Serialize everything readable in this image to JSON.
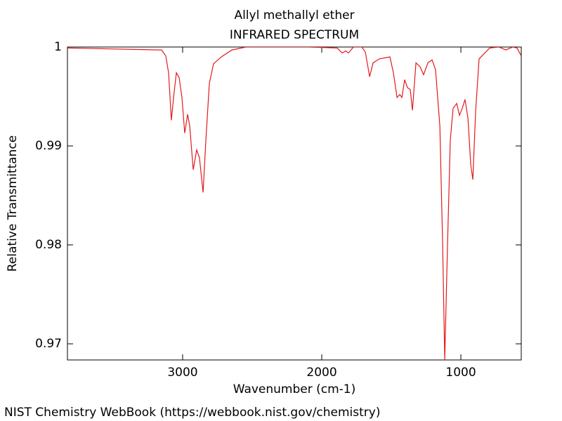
{
  "chart_data": {
    "type": "line",
    "title": "Allyl methallyl ether",
    "subtitle": "INFRARED SPECTRUM",
    "x_label": "Wavenumber (cm-1)",
    "y_label": "Relative Transmittance",
    "footer": "NIST Chemistry WebBook (https://webbook.nist.gov/chemistry)",
    "xlim": [
      3828,
      566
    ],
    "ylim": [
      0.96837,
      1.0
    ],
    "xticks": [
      3000,
      2000,
      1000
    ],
    "yticks": [
      0.97,
      0.98,
      0.99,
      1
    ],
    "x": [
      3828,
      3151,
      3121,
      3101,
      3081,
      3065,
      3045,
      3025,
      3005,
      2985,
      2964,
      2949,
      2924,
      2899,
      2879,
      2853,
      2833,
      2808,
      2778,
      2722,
      2646,
      2545,
      2091,
      1889,
      1853,
      1828,
      1808,
      1772,
      1712,
      1687,
      1656,
      1631,
      1586,
      1510,
      1485,
      1459,
      1439,
      1424,
      1404,
      1384,
      1364,
      1348,
      1323,
      1293,
      1268,
      1237,
      1207,
      1182,
      1151,
      1131,
      1116,
      1096,
      1076,
      1056,
      1030,
      1010,
      990,
      970,
      949,
      929,
      914,
      894,
      869,
      828,
      793,
      727,
      677,
      626,
      596,
      566
    ],
    "series": [
      {
        "name": "Allyl methallyl ether",
        "color": "#e31a1c",
        "values": [
          0.9999,
          0.9997,
          0.9991,
          0.9974,
          0.9926,
          0.9949,
          0.9974,
          0.9969,
          0.9949,
          0.9913,
          0.9932,
          0.992,
          0.9876,
          0.9896,
          0.9888,
          0.9853,
          0.9906,
          0.9963,
          0.9983,
          0.999,
          0.9997,
          1.0,
          1.0,
          0.9999,
          0.9994,
          0.9996,
          0.9994,
          1.0,
          1.0,
          0.9995,
          0.997,
          0.9984,
          0.9988,
          0.999,
          0.9974,
          0.9949,
          0.9952,
          0.9949,
          0.9967,
          0.9959,
          0.9957,
          0.9936,
          0.9984,
          0.998,
          0.9972,
          0.9984,
          0.9987,
          0.9977,
          0.992,
          0.98,
          0.96837,
          0.98,
          0.9906,
          0.9938,
          0.9943,
          0.9931,
          0.9938,
          0.9947,
          0.9928,
          0.9881,
          0.9866,
          0.9935,
          0.9988,
          0.9994,
          0.9999,
          1.0,
          0.9997,
          1.0,
          0.9999,
          0.9991
        ]
      }
    ]
  }
}
